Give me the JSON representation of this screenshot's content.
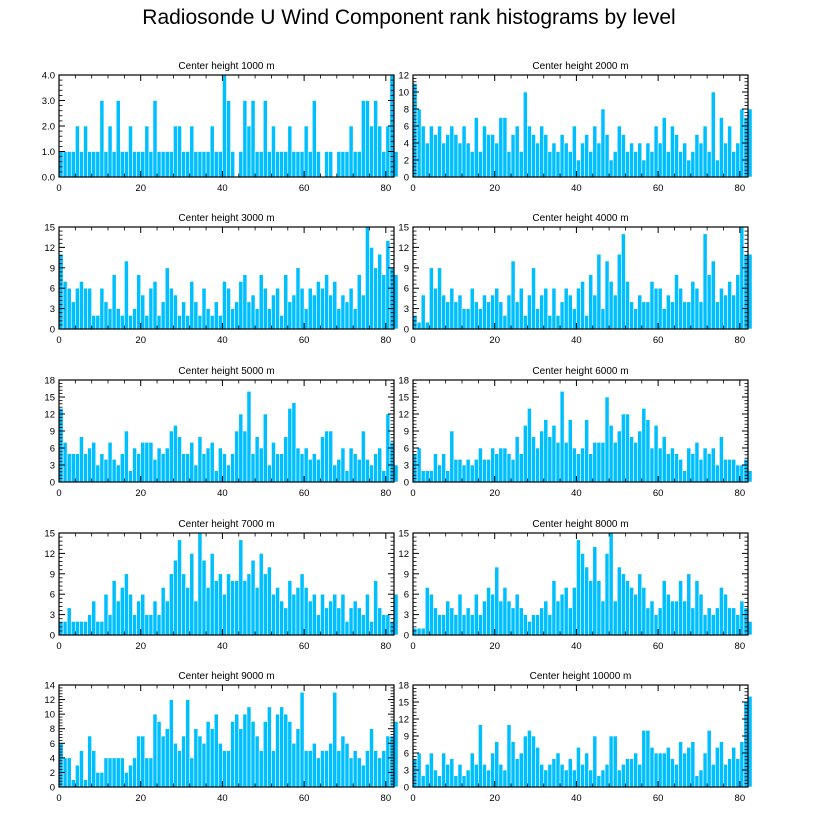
{
  "title": "Radiosonde U Wind Component rank histograms by level",
  "colors": {
    "bar": "#00bfff",
    "bar_edge": "#ffffff",
    "frame": "#000000"
  },
  "chart_data": [
    {
      "type": "bar",
      "title": "Center height 1000 m",
      "x_start": 0,
      "xlim": [
        0,
        82
      ],
      "ylim": [
        0,
        4
      ],
      "yticks": [
        0,
        1,
        2,
        3,
        4
      ],
      "ytick_labels": [
        "0.0",
        "1.0",
        "2.0",
        "3.0",
        "4.0"
      ],
      "xticks": [
        0,
        20,
        40,
        60,
        80
      ],
      "values": [
        1,
        1,
        1,
        1,
        2,
        1,
        2,
        1,
        1,
        1,
        3,
        1,
        2,
        1,
        3,
        1,
        1,
        2,
        1,
        1,
        1,
        2,
        1,
        3,
        1,
        1,
        1,
        1,
        2,
        2,
        1,
        1,
        2,
        1,
        1,
        1,
        1,
        2,
        1,
        1,
        4,
        3,
        1,
        0,
        1,
        3,
        2,
        3,
        1,
        1,
        3,
        1,
        2,
        1,
        1,
        1,
        2,
        1,
        1,
        1,
        2,
        1,
        3,
        1,
        0,
        1,
        1,
        0,
        1,
        1,
        1,
        2,
        1,
        1,
        3,
        3,
        2,
        3,
        2,
        1,
        2,
        4,
        1
      ],
      "baseline": 1
    },
    {
      "type": "bar",
      "title": "Center height 2000 m",
      "x_start": 0,
      "xlim": [
        0,
        82
      ],
      "ylim": [
        0,
        12
      ],
      "yticks": [
        0,
        2,
        4,
        6,
        8,
        10,
        12
      ],
      "ytick_labels": [
        "0",
        "2",
        "4",
        "6",
        "8",
        "10",
        "12"
      ],
      "xticks": [
        0,
        20,
        40,
        60,
        80
      ],
      "values": [
        11,
        8,
        6,
        4,
        6,
        5,
        6,
        4,
        5,
        6,
        5,
        4,
        6,
        4,
        3,
        7,
        3,
        6,
        5,
        5,
        4,
        7,
        7,
        3,
        5,
        6,
        3,
        10,
        6,
        5,
        4,
        6,
        5,
        3,
        4,
        3,
        5,
        4,
        3,
        6,
        2,
        4,
        5,
        3,
        6,
        4,
        8,
        5,
        2,
        3,
        6,
        5,
        3,
        4,
        3,
        4,
        2,
        4,
        3,
        6,
        4,
        7,
        3,
        6,
        5,
        3,
        4,
        2,
        3,
        5,
        4,
        6,
        3,
        10,
        2,
        7,
        4,
        6,
        3,
        4,
        8,
        7,
        8
      ],
      "highlight_indices": [
        11,
        12
      ]
    },
    {
      "type": "bar",
      "title": "Center height 3000 m",
      "x_start": 0,
      "xlim": [
        0,
        82
      ],
      "ylim": [
        0,
        15
      ],
      "yticks": [
        0,
        3,
        6,
        9,
        12,
        15
      ],
      "ytick_labels": [
        "0",
        "3",
        "6",
        "9",
        "12",
        "15"
      ],
      "xticks": [
        0,
        20,
        40,
        60,
        80
      ],
      "values": [
        11,
        7,
        6,
        4,
        6,
        7,
        6,
        6,
        2,
        2,
        6,
        4,
        3,
        8,
        3,
        2,
        10,
        2,
        3,
        8,
        5,
        2,
        6,
        7,
        2,
        4,
        9,
        6,
        5,
        2,
        4,
        2,
        7,
        4,
        2,
        6,
        3,
        2,
        4,
        2,
        7,
        6,
        3,
        4,
        7,
        8,
        4,
        5,
        3,
        8,
        6,
        3,
        5,
        6,
        2,
        8,
        4,
        5,
        9,
        6,
        3,
        6,
        5,
        7,
        6,
        8,
        5,
        7,
        3,
        5,
        4,
        6,
        3,
        8,
        5,
        15,
        12,
        9,
        11,
        8,
        13,
        9,
        8
      ],
      "highlight_indices": [
        7
      ]
    },
    {
      "type": "bar",
      "title": "Center height 4000 m",
      "x_start": 0,
      "xlim": [
        0,
        82
      ],
      "ylim": [
        0,
        15
      ],
      "yticks": [
        0,
        3,
        6,
        9,
        12,
        15
      ],
      "ytick_labels": [
        "0",
        "3",
        "6",
        "9",
        "12",
        "15"
      ],
      "xticks": [
        0,
        20,
        40,
        60,
        80
      ],
      "values": [
        2,
        1,
        5,
        1,
        9,
        6,
        9,
        5,
        4,
        6,
        4,
        5,
        3,
        3,
        6,
        4,
        3,
        5,
        4,
        5,
        6,
        4,
        2,
        5,
        10,
        4,
        6,
        2,
        5,
        9,
        3,
        5,
        6,
        2,
        6,
        2,
        4,
        6,
        5,
        3,
        6,
        7,
        2,
        8,
        5,
        11,
        3,
        10,
        7,
        5,
        11,
        14,
        7,
        4,
        3,
        5,
        4,
        4,
        7,
        6,
        6,
        3,
        5,
        4,
        8,
        6,
        4,
        4,
        7,
        6,
        4,
        14,
        8,
        10,
        4,
        6,
        5,
        7,
        5,
        8,
        15,
        11,
        11
      ],
      "highlight_indices": [
        6,
        19
      ]
    },
    {
      "type": "bar",
      "title": "Center height 5000 m",
      "x_start": 0,
      "xlim": [
        0,
        82
      ],
      "ylim": [
        0,
        18
      ],
      "yticks": [
        0,
        3,
        6,
        9,
        12,
        15,
        18
      ],
      "ytick_labels": [
        "0",
        "3",
        "6",
        "9",
        "12",
        "15",
        "18"
      ],
      "xticks": [
        0,
        20,
        40,
        60,
        80
      ],
      "values": [
        13,
        7,
        5,
        5,
        5,
        8,
        5,
        6,
        7,
        3,
        5,
        4,
        7,
        4,
        3,
        5,
        9,
        2,
        6,
        5,
        7,
        7,
        7,
        4,
        6,
        5,
        6,
        9,
        10,
        8,
        5,
        5,
        7,
        3,
        8,
        5,
        6,
        7,
        2,
        6,
        5,
        3,
        5,
        9,
        12,
        9,
        16,
        5,
        8,
        6,
        12,
        3,
        7,
        5,
        5,
        8,
        13,
        14,
        6,
        5,
        6,
        4,
        5,
        4,
        8,
        9,
        9,
        3,
        4,
        6,
        2,
        6,
        5,
        4,
        9,
        4,
        3,
        5,
        6,
        2,
        12,
        7,
        3
      ],
      "highlight_indices": [
        37,
        38
      ]
    },
    {
      "type": "bar",
      "title": "Center height 6000 m",
      "x_start": 0,
      "xlim": [
        0,
        82
      ],
      "ylim": [
        0,
        18
      ],
      "yticks": [
        0,
        3,
        6,
        9,
        12,
        15,
        18
      ],
      "ytick_labels": [
        "0",
        "3",
        "6",
        "9",
        "12",
        "15",
        "18"
      ],
      "xticks": [
        0,
        20,
        40,
        60,
        80
      ],
      "values": [
        5,
        6,
        2,
        2,
        2,
        5,
        3,
        5,
        2,
        9,
        4,
        4,
        3,
        4,
        3,
        4,
        6,
        4,
        4,
        6,
        5,
        6,
        6,
        5,
        4,
        8,
        5,
        10,
        13,
        8,
        6,
        9,
        11,
        8,
        10,
        7,
        16,
        7,
        11,
        6,
        5,
        6,
        11,
        5,
        7,
        7,
        7,
        15,
        10,
        7,
        9,
        12,
        12,
        8,
        7,
        9,
        13,
        11,
        6,
        10,
        6,
        8,
        5,
        6,
        5,
        4,
        2,
        6,
        5,
        7,
        4,
        6,
        5,
        6,
        3,
        8,
        4,
        4,
        4,
        3,
        3,
        4,
        2
      ],
      "highlight_indices": []
    },
    {
      "type": "bar",
      "title": "Center height 7000 m",
      "x_start": 0,
      "xlim": [
        0,
        82
      ],
      "ylim": [
        0,
        15
      ],
      "yticks": [
        0,
        3,
        6,
        9,
        12,
        15
      ],
      "ytick_labels": [
        "0",
        "3",
        "6",
        "9",
        "12",
        "15"
      ],
      "xticks": [
        0,
        20,
        40,
        60,
        80
      ],
      "values": [
        2,
        2,
        4,
        2,
        2,
        2,
        2,
        3,
        5,
        2,
        2,
        6,
        3,
        8,
        5,
        7,
        9,
        6,
        3,
        5,
        6,
        3,
        3,
        5,
        3,
        7,
        5,
        9,
        11,
        14,
        9,
        7,
        12,
        5,
        15,
        11,
        7,
        12,
        8,
        9,
        6,
        9,
        8,
        8,
        14,
        8,
        9,
        11,
        7,
        12,
        9,
        10,
        6,
        7,
        5,
        4,
        8,
        6,
        7,
        9,
        7,
        5,
        6,
        3,
        6,
        4,
        5,
        6,
        4,
        6,
        2,
        4,
        5,
        4,
        3,
        6,
        2,
        8,
        4,
        3,
        3,
        2,
        6
      ],
      "highlight_indices": [
        8,
        9
      ]
    },
    {
      "type": "bar",
      "title": "Center height 8000 m",
      "x_start": 0,
      "xlim": [
        0,
        82
      ],
      "ylim": [
        0,
        15
      ],
      "yticks": [
        0,
        3,
        6,
        9,
        12,
        15
      ],
      "ytick_labels": [
        "0",
        "3",
        "6",
        "9",
        "12",
        "15"
      ],
      "xticks": [
        0,
        20,
        40,
        60,
        80
      ],
      "values": [
        1,
        1,
        1,
        7,
        6,
        4,
        3,
        3,
        5,
        4,
        3,
        6,
        3,
        4,
        3,
        6,
        3,
        5,
        7,
        6,
        10,
        5,
        7,
        5,
        4,
        6,
        4,
        3,
        2,
        3,
        3,
        4,
        5,
        3,
        8,
        5,
        6,
        7,
        4,
        7,
        14,
        12,
        10,
        8,
        13,
        8,
        5,
        12,
        15,
        5,
        10,
        9,
        8,
        7,
        6,
        9,
        7,
        4,
        5,
        3,
        4,
        8,
        6,
        5,
        5,
        8,
        5,
        9,
        4,
        8,
        6,
        3,
        4,
        3,
        4,
        7,
        6,
        4,
        4,
        3,
        5,
        4,
        2
      ],
      "highlight_indices": []
    },
    {
      "type": "bar",
      "title": "Center height 9000 m",
      "x_start": 0,
      "xlim": [
        0,
        82
      ],
      "ylim": [
        0,
        14
      ],
      "yticks": [
        0,
        2,
        4,
        6,
        8,
        10,
        12,
        14
      ],
      "ytick_labels": [
        "0",
        "2",
        "4",
        "6",
        "8",
        "10",
        "12",
        "14"
      ],
      "xticks": [
        0,
        20,
        40,
        60,
        80
      ],
      "values": [
        6,
        4,
        4,
        1,
        3,
        5,
        1,
        7,
        5,
        2,
        2,
        4,
        4,
        4,
        4,
        4,
        2,
        3,
        4,
        7,
        7,
        4,
        4,
        10,
        9,
        7,
        8,
        12,
        6,
        5,
        7,
        12,
        4,
        8,
        7,
        6,
        9,
        8,
        10,
        6,
        5,
        5,
        9,
        10,
        8,
        10,
        11,
        9,
        7,
        5,
        9,
        11,
        5,
        10,
        11,
        10,
        9,
        6,
        8,
        13,
        5,
        5,
        6,
        4,
        5,
        5,
        6,
        13,
        5,
        7,
        6,
        4,
        5,
        4,
        3,
        5,
        8,
        5,
        4,
        5,
        7,
        7,
        9
      ],
      "highlight_indices": [
        24,
        25
      ]
    },
    {
      "type": "bar",
      "title": "Center height 10000 m",
      "x_start": 0,
      "xlim": [
        0,
        82
      ],
      "ylim": [
        0,
        18
      ],
      "yticks": [
        0,
        3,
        6,
        9,
        12,
        15,
        18
      ],
      "ytick_labels": [
        "0",
        "3",
        "6",
        "9",
        "12",
        "15",
        "18"
      ],
      "xticks": [
        0,
        20,
        40,
        60,
        80
      ],
      "values": [
        5,
        6,
        2,
        4,
        6,
        3,
        2,
        6,
        4,
        5,
        2,
        4,
        2,
        3,
        6,
        4,
        11,
        4,
        3,
        6,
        8,
        4,
        3,
        11,
        8,
        5,
        6,
        9,
        10,
        9,
        7,
        4,
        3,
        4,
        5,
        6,
        4,
        3,
        5,
        3,
        7,
        4,
        6,
        3,
        9,
        2,
        3,
        4,
        9,
        9,
        3,
        4,
        5,
        5,
        6,
        4,
        10,
        10,
        7,
        6,
        6,
        6,
        7,
        5,
        4,
        8,
        6,
        7,
        8,
        2,
        3,
        6,
        10,
        4,
        7,
        8,
        4,
        5,
        7,
        5,
        8,
        15,
        16
      ],
      "highlight_indices": []
    }
  ]
}
